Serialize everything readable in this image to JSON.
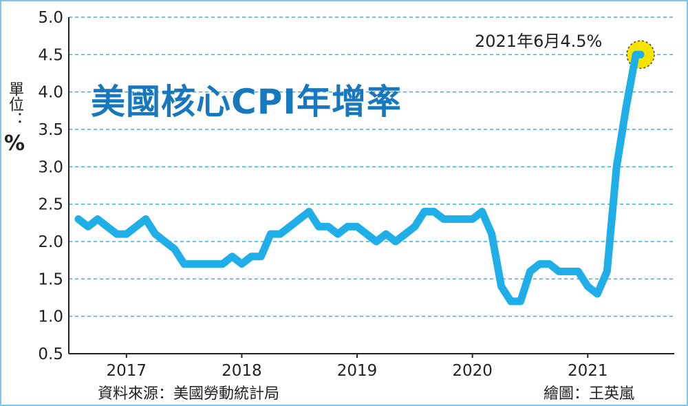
{
  "unit_label": {
    "text": "單位：",
    "unit": "%"
  },
  "source": "資料來源：美國勞動統計局",
  "credit": "繪圖：王英嵐",
  "chart_data": {
    "type": "line",
    "title": "美國核心CPI年增率",
    "xlabel": "",
    "ylabel": "",
    "ylim": [
      0.5,
      5.0
    ],
    "yticks": [
      0.5,
      1.0,
      1.5,
      2.0,
      2.5,
      3.0,
      3.5,
      4.0,
      4.5,
      5.0
    ],
    "ytick_labels": [
      "0.5",
      "1.0",
      "1.5",
      "2.0",
      "2.5",
      "3.0",
      "3.5",
      "4.0",
      "4.5",
      "5.0"
    ],
    "xticks": [
      2017,
      2018,
      2019,
      2020,
      2021
    ],
    "xtick_labels": [
      "2017",
      "2018",
      "2019",
      "2020",
      "2021"
    ],
    "xlim": [
      2016.5,
      2021.75
    ],
    "grid": "horizontal dashed",
    "line_color": "#1faee8",
    "grid_color": "#3aaed8",
    "annotation": {
      "text": "2021年6月4.5%",
      "x": 2021.458,
      "y": 4.5,
      "marker_color": "#f7e300"
    },
    "x": [
      2016.583,
      2016.667,
      2016.75,
      2016.833,
      2016.917,
      2017.0,
      2017.083,
      2017.167,
      2017.25,
      2017.333,
      2017.417,
      2017.5,
      2017.583,
      2017.667,
      2017.75,
      2017.833,
      2017.917,
      2018.0,
      2018.083,
      2018.167,
      2018.25,
      2018.333,
      2018.417,
      2018.5,
      2018.583,
      2018.667,
      2018.75,
      2018.833,
      2018.917,
      2019.0,
      2019.083,
      2019.167,
      2019.25,
      2019.333,
      2019.417,
      2019.5,
      2019.583,
      2019.667,
      2019.75,
      2019.833,
      2019.917,
      2020.0,
      2020.083,
      2020.167,
      2020.25,
      2020.333,
      2020.417,
      2020.5,
      2020.583,
      2020.667,
      2020.75,
      2020.833,
      2020.917,
      2021.0,
      2021.083,
      2021.167,
      2021.25,
      2021.333,
      2021.417,
      2021.458
    ],
    "y": [
      2.3,
      2.2,
      2.3,
      2.2,
      2.1,
      2.1,
      2.2,
      2.3,
      2.1,
      2.0,
      1.9,
      1.7,
      1.7,
      1.7,
      1.7,
      1.7,
      1.8,
      1.7,
      1.8,
      1.8,
      2.1,
      2.1,
      2.2,
      2.3,
      2.4,
      2.2,
      2.2,
      2.1,
      2.2,
      2.2,
      2.1,
      2.0,
      2.1,
      2.0,
      2.1,
      2.2,
      2.4,
      2.4,
      2.3,
      2.3,
      2.3,
      2.3,
      2.4,
      2.1,
      1.4,
      1.2,
      1.2,
      1.6,
      1.7,
      1.7,
      1.6,
      1.6,
      1.6,
      1.4,
      1.3,
      1.6,
      3.0,
      3.8,
      4.5,
      4.5
    ]
  }
}
